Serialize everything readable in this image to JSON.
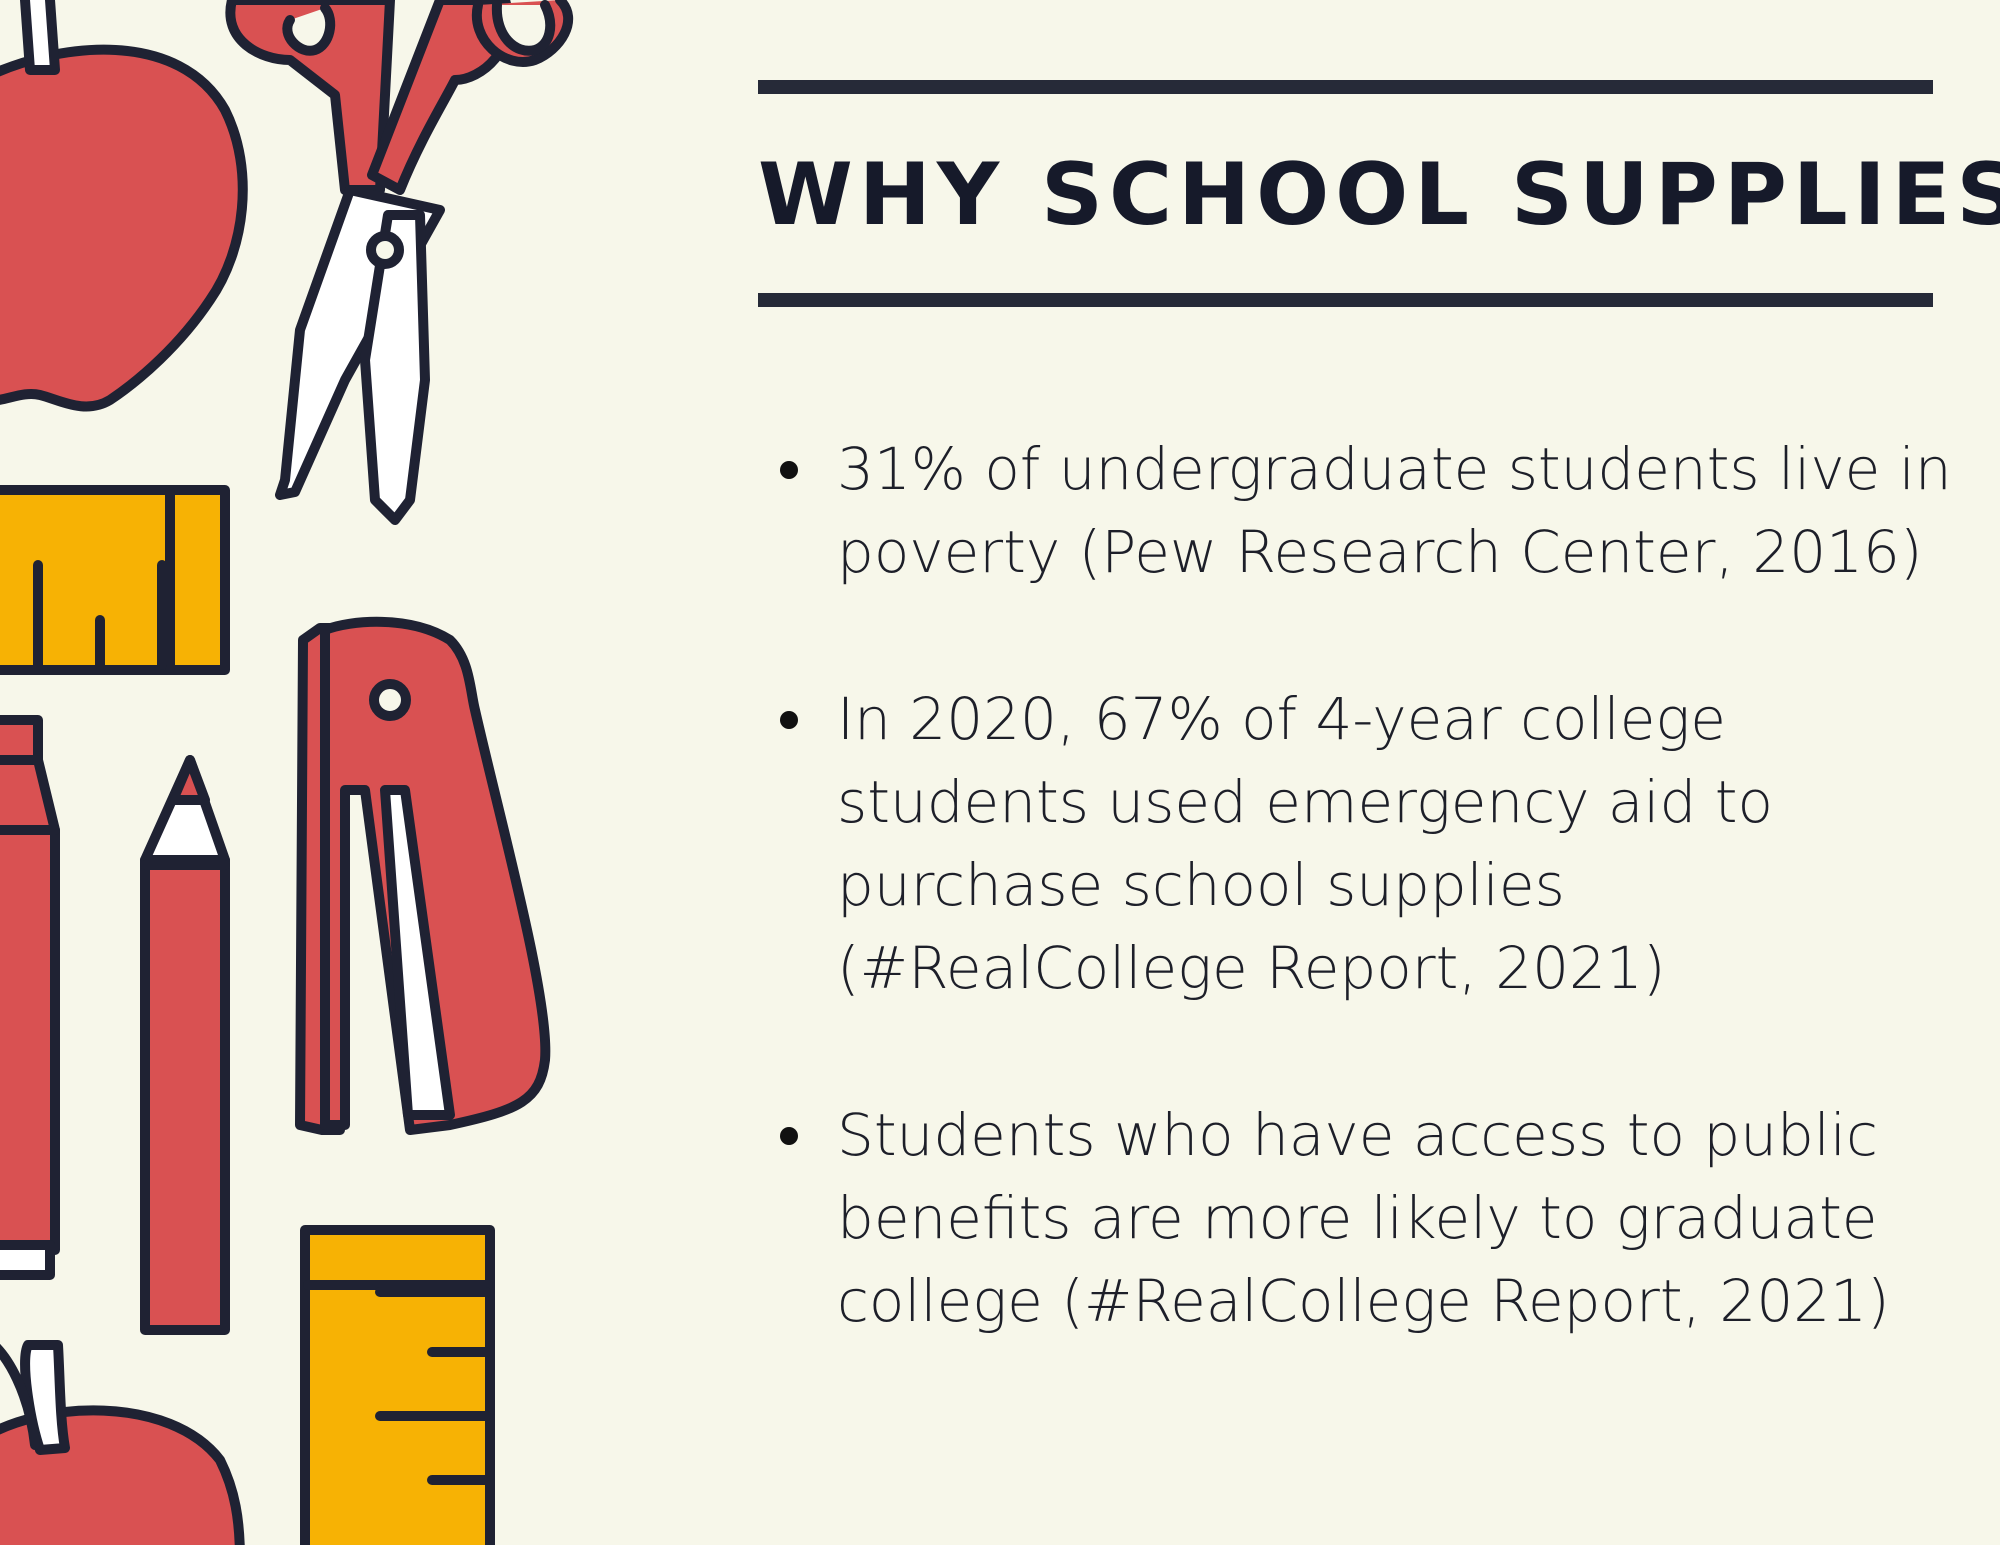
{
  "heading": {
    "title": "WHY SCHOOL SUPPLIES?"
  },
  "bullets": [
    {
      "lines": [
        "31% of undergraduate students live in",
        "poverty (Pew Research Center, 2016)"
      ]
    },
    {
      "lines": [
        "In 2020, 67% of 4-year college",
        "students used emergency aid to",
        "purchase school supplies",
        "(#RealCollege Report, 2021)"
      ]
    },
    {
      "lines": [
        "Students who have access to public",
        "benefits are more likely to graduate",
        "college (#RealCollege Report, 2021)"
      ]
    }
  ],
  "illustration": {
    "icons": [
      "apple-icon",
      "scissors-icon",
      "ruler-icon",
      "marker-icon",
      "pencil-icon",
      "stapler-icon",
      "ruler-icon",
      "apple-icon"
    ]
  },
  "colors": {
    "background": "#f7f7ea",
    "red": "#d95152",
    "yellow": "#f7b204",
    "outline": "#1f2233",
    "text": "#1d1f29"
  }
}
